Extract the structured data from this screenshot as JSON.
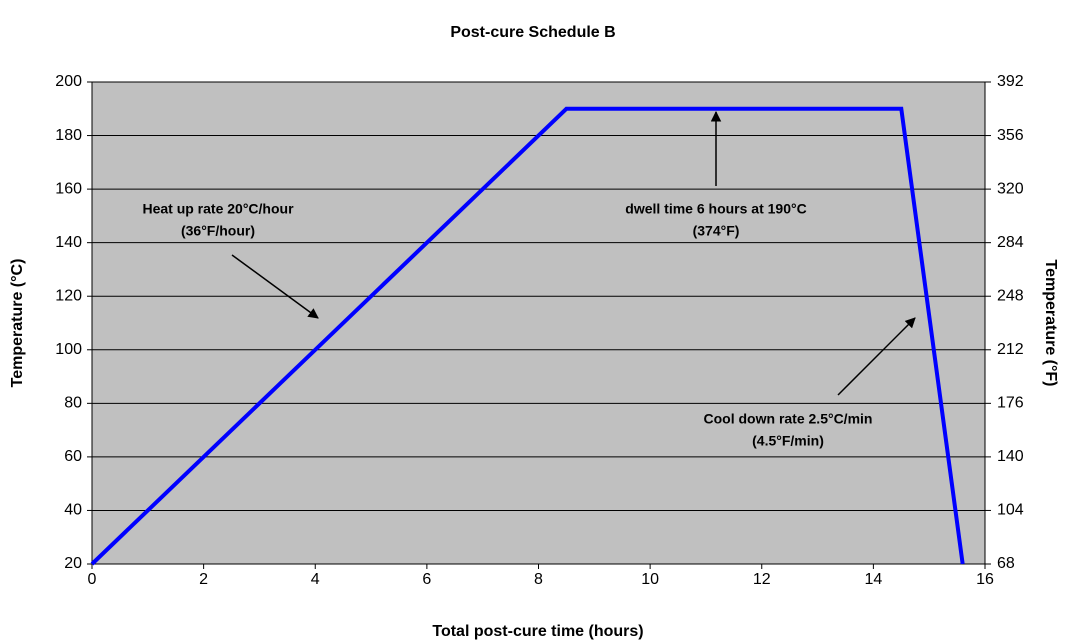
{
  "chart_data": {
    "type": "line",
    "title": "Post-cure Schedule B",
    "x_label": "Total post-cure time (hours)",
    "y_label": "Temperature (°C)",
    "y2_label": "Temperature (°F)",
    "x": [
      0,
      8.5,
      14.5,
      15.6
    ],
    "series": [
      {
        "color": "#0000ff",
        "values": [
          20,
          190,
          190,
          20
        ]
      }
    ],
    "xlim": [
      0,
      16
    ],
    "xticks": [
      0,
      2,
      4,
      6,
      8,
      10,
      12,
      14,
      16
    ],
    "ylim": [
      20,
      200
    ],
    "yticks": [
      20,
      40,
      60,
      80,
      100,
      120,
      140,
      160,
      180,
      200
    ],
    "y2lim": [
      68,
      392
    ],
    "y2ticks": [
      68,
      104,
      140,
      176,
      212,
      248,
      284,
      320,
      356,
      392
    ],
    "grid": true,
    "plot_background": "#c0c0c0",
    "annotations": [
      {
        "lines": [
          "Heat up rate 20°C/hour",
          "(36°F/hour)"
        ]
      },
      {
        "lines": [
          "dwell time 6 hours at 190°C",
          "(374°F)"
        ]
      },
      {
        "lines": [
          "Cool down rate 2.5°C/min",
          "(4.5°F/min)"
        ]
      }
    ]
  }
}
